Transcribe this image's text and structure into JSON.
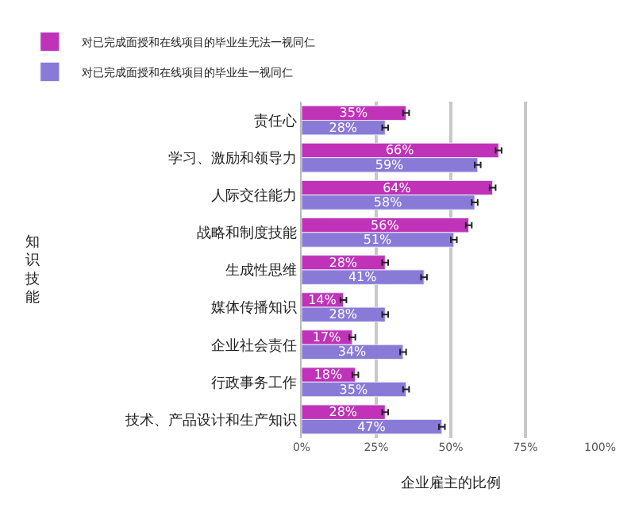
{
  "chart_data": {
    "type": "bar",
    "orientation": "horizontal",
    "categories": [
      "责任心",
      "学习、激励和领导力",
      "人际交往能力",
      "战略和制度技能",
      "生成性思维",
      "媒体传播知识",
      "企业社会责任",
      "行政事务工作",
      "技术、产品设计和生产知识"
    ],
    "series": [
      {
        "name": "对已完成面授和在线项目的毕业生无法一视同仁",
        "color": "#c032b8",
        "values": [
          35,
          66,
          64,
          56,
          28,
          14,
          17,
          18,
          28
        ],
        "value_labels": [
          "35%",
          "66%",
          "64%",
          "56%",
          "28%",
          "14%",
          "17%",
          "18%",
          "28%"
        ],
        "errors": [
          1,
          1,
          1,
          1,
          1,
          1,
          1,
          1,
          1
        ]
      },
      {
        "name": "对已完成面授和在线项目的毕业生一视同仁",
        "color": "#8a7ad8",
        "values": [
          28,
          59,
          58,
          51,
          41,
          28,
          34,
          35,
          47
        ],
        "value_labels": [
          "28%",
          "59%",
          "58%",
          "51%",
          "41%",
          "28%",
          "34%",
          "35%",
          "47%"
        ],
        "errors": [
          1,
          1,
          1,
          1,
          1,
          1,
          1,
          1,
          1
        ]
      }
    ],
    "xlim": [
      0,
      100
    ],
    "xticks": [
      {
        "value": 0,
        "label": "0%"
      },
      {
        "value": 25,
        "label": "25%"
      },
      {
        "value": 50,
        "label": "50%"
      },
      {
        "value": 75,
        "label": "75%"
      },
      {
        "value": 100,
        "label": "100%"
      }
    ],
    "xlabel": "企业雇主的比例",
    "annotations": [
      "知识技能"
    ],
    "grid": "x",
    "legend": "top"
  }
}
